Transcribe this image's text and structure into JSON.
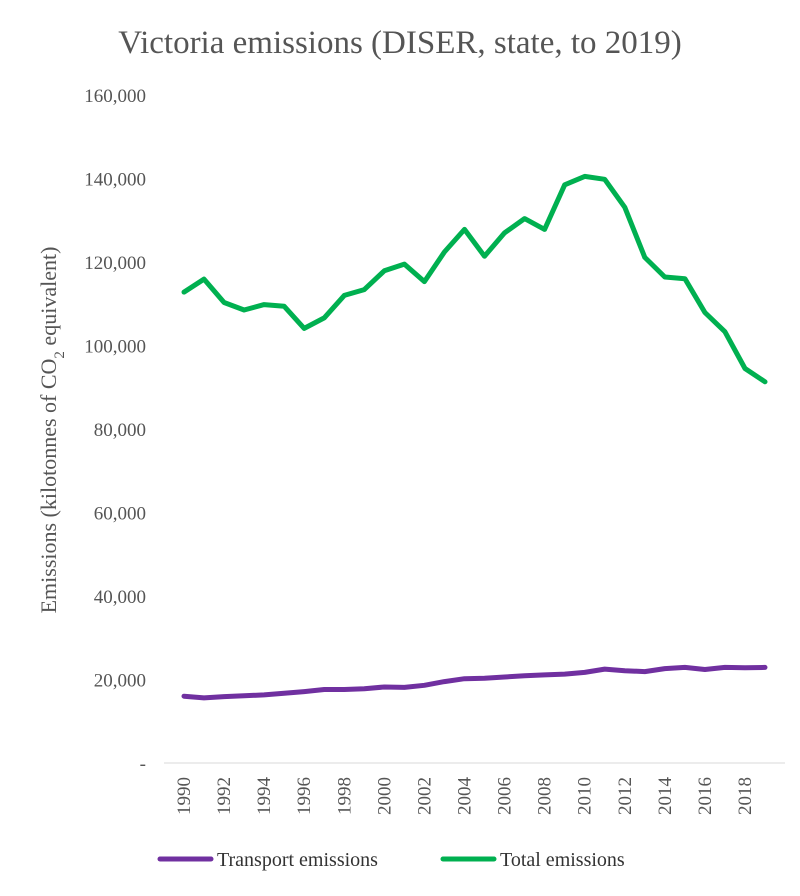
{
  "chart_data": {
    "type": "line",
    "title": "Victoria emissions (DISER, state, to 2019)",
    "ylabel_main": "Emissions (kilotonnes of CO",
    "ylabel_sub": "2",
    "ylabel_tail": " equivalent)",
    "ylim": [
      0,
      160000
    ],
    "y_ticks": [
      0,
      20000,
      40000,
      60000,
      80000,
      100000,
      120000,
      140000,
      160000
    ],
    "y_tick_labels": [
      "-",
      "20,000",
      "40,000",
      "60,000",
      "80,000",
      "100,000",
      "120,000",
      "140,000",
      "160,000"
    ],
    "x": [
      1990,
      1991,
      1992,
      1993,
      1994,
      1995,
      1996,
      1997,
      1998,
      1999,
      2000,
      2001,
      2002,
      2003,
      2004,
      2005,
      2006,
      2007,
      2008,
      2009,
      2010,
      2011,
      2012,
      2013,
      2014,
      2015,
      2016,
      2017,
      2018,
      2019
    ],
    "x_tick_labels": [
      "1990",
      "1992",
      "1994",
      "1996",
      "1998",
      "2000",
      "2002",
      "2004",
      "2006",
      "2008",
      "2010",
      "2012",
      "2014",
      "2016",
      "2018"
    ],
    "legend_position": "bottom",
    "grid": false,
    "series": [
      {
        "name": "Transport emissions",
        "color": "#7030a0",
        "values": [
          16000,
          15600,
          15900,
          16100,
          16300,
          16700,
          17100,
          17600,
          17600,
          17800,
          18200,
          18100,
          18600,
          19500,
          20200,
          20300,
          20600,
          20900,
          21100,
          21300,
          21700,
          22500,
          22100,
          21900,
          22600,
          22900,
          22400,
          22900,
          22800,
          22900
        ]
      },
      {
        "name": "Total emissions",
        "color": "#00b050",
        "values": [
          112800,
          115900,
          110300,
          108500,
          109800,
          109400,
          104100,
          106600,
          112000,
          113400,
          117900,
          119500,
          115300,
          122400,
          127800,
          121400,
          127000,
          130400,
          127800,
          138500,
          140500,
          139800,
          133100,
          121100,
          116400,
          116000,
          107900,
          103300,
          94500,
          91300
        ]
      }
    ]
  }
}
